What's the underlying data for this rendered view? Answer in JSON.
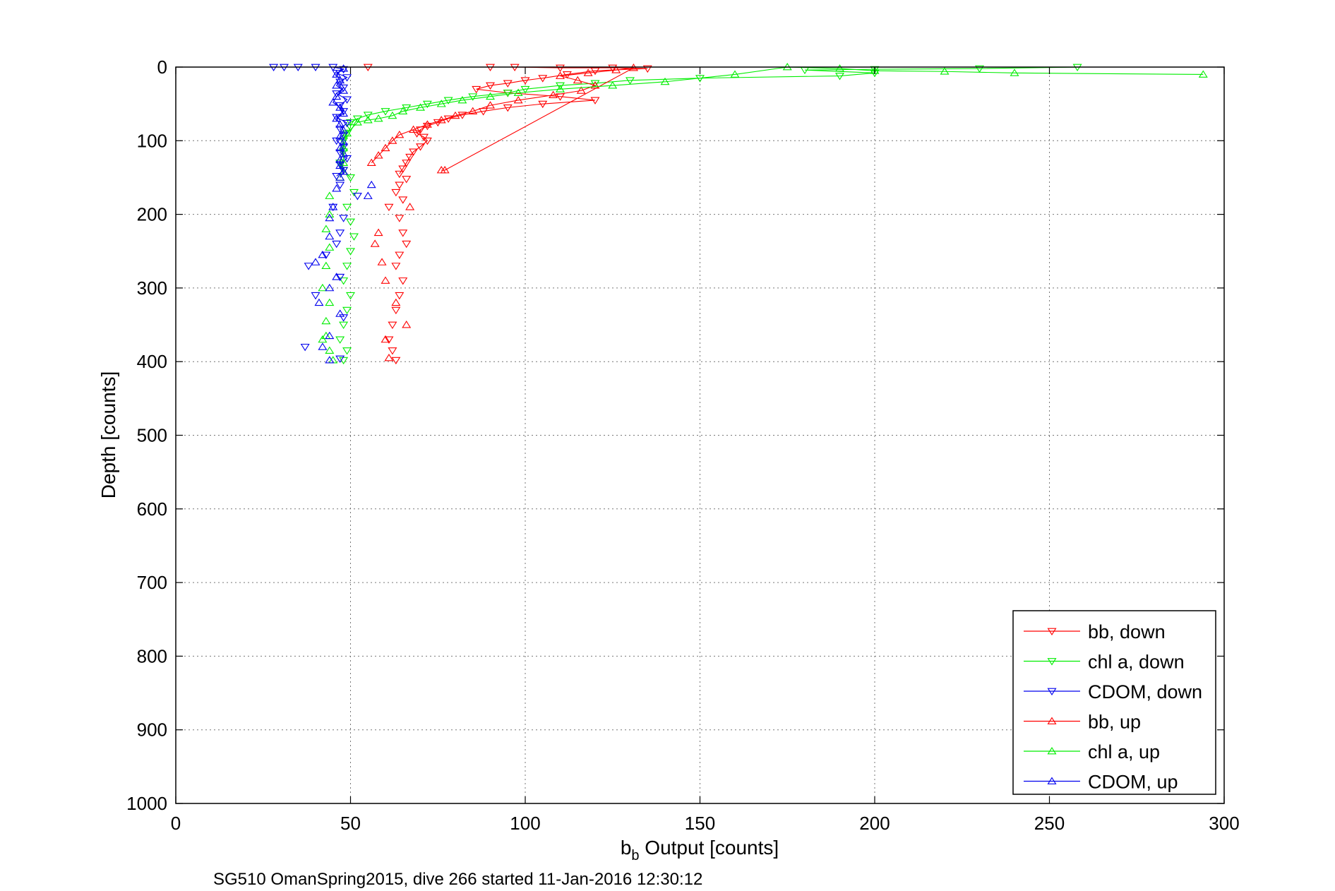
{
  "chart_data": {
    "type": "scatter",
    "xlabel": "b_b Output [counts]",
    "xlabel_main": "b",
    "xlabel_sub": "b",
    "xlabel_rest": " Output [counts]",
    "ylabel": "Depth [counts]",
    "footer": "SG510 OmanSpring2015, dive 266 started 11-Jan-2016 12:30:12",
    "xlim": [
      0,
      300
    ],
    "ylim": [
      0,
      1000
    ],
    "y_reversed": true,
    "grid": true,
    "x_ticks": [
      "0",
      "50",
      "100",
      "150",
      "200",
      "250",
      "300"
    ],
    "y_ticks": [
      "0",
      "100",
      "200",
      "300",
      "400",
      "500",
      "600",
      "700",
      "800",
      "900",
      "1000"
    ],
    "legend_position": "bottom-right",
    "series": [
      {
        "name": "bb, down",
        "color": "#ff0000",
        "marker": "triangle-down",
        "points": [
          [
            55,
            0
          ],
          [
            90,
            0
          ],
          [
            97,
            0
          ],
          [
            110,
            1
          ],
          [
            125,
            1
          ],
          [
            135,
            2
          ],
          [
            120,
            5
          ],
          [
            112,
            10
          ],
          [
            105,
            15
          ],
          [
            100,
            18
          ],
          [
            95,
            22
          ],
          [
            90,
            25
          ],
          [
            86,
            30
          ],
          [
            95,
            35
          ],
          [
            110,
            40
          ],
          [
            120,
            45
          ],
          [
            105,
            50
          ],
          [
            95,
            55
          ],
          [
            88,
            60
          ],
          [
            82,
            65
          ],
          [
            78,
            70
          ],
          [
            75,
            75
          ],
          [
            72,
            80
          ],
          [
            70,
            85
          ],
          [
            69,
            90
          ],
          [
            71,
            95
          ],
          [
            72,
            100
          ],
          [
            70,
            108
          ],
          [
            68,
            115
          ],
          [
            67,
            122
          ],
          [
            66,
            130
          ],
          [
            65,
            138
          ],
          [
            64,
            145
          ],
          [
            66,
            152
          ],
          [
            64,
            160
          ],
          [
            63,
            170
          ],
          [
            65,
            180
          ],
          [
            61,
            190
          ],
          [
            64,
            205
          ],
          [
            65,
            225
          ],
          [
            66,
            240
          ],
          [
            64,
            255
          ],
          [
            63,
            270
          ],
          [
            65,
            290
          ],
          [
            64,
            310
          ],
          [
            63,
            330
          ],
          [
            62,
            350
          ],
          [
            61,
            370
          ],
          [
            62,
            385
          ],
          [
            63,
            398
          ]
        ]
      },
      {
        "name": "chl a, down",
        "color": "#00ee00",
        "marker": "triangle-down",
        "points": [
          [
            258,
            0
          ],
          [
            230,
            2
          ],
          [
            200,
            3
          ],
          [
            180,
            4
          ],
          [
            200,
            8
          ],
          [
            190,
            12
          ],
          [
            150,
            15
          ],
          [
            130,
            18
          ],
          [
            120,
            22
          ],
          [
            110,
            25
          ],
          [
            100,
            30
          ],
          [
            95,
            35
          ],
          [
            85,
            40
          ],
          [
            78,
            45
          ],
          [
            72,
            50
          ],
          [
            66,
            55
          ],
          [
            60,
            60
          ],
          [
            55,
            65
          ],
          [
            52,
            70
          ],
          [
            50,
            75
          ],
          [
            50,
            82
          ],
          [
            49,
            90
          ],
          [
            48,
            100
          ],
          [
            48,
            115
          ],
          [
            47,
            130
          ],
          [
            48,
            140
          ],
          [
            50,
            150
          ],
          [
            51,
            170
          ],
          [
            49,
            190
          ],
          [
            50,
            210
          ],
          [
            51,
            230
          ],
          [
            50,
            250
          ],
          [
            49,
            270
          ],
          [
            48,
            290
          ],
          [
            50,
            310
          ],
          [
            49,
            330
          ],
          [
            48,
            350
          ],
          [
            47,
            370
          ],
          [
            49,
            385
          ],
          [
            48,
            398
          ]
        ]
      },
      {
        "name": "CDOM, down",
        "color": "#0000ee",
        "marker": "triangle-down",
        "points": [
          [
            28,
            0
          ],
          [
            31,
            0
          ],
          [
            35,
            0
          ],
          [
            40,
            0
          ],
          [
            45,
            0
          ],
          [
            48,
            3
          ],
          [
            46,
            8
          ],
          [
            49,
            14
          ],
          [
            47,
            20
          ],
          [
            48,
            28
          ],
          [
            46,
            36
          ],
          [
            49,
            44
          ],
          [
            47,
            52
          ],
          [
            48,
            60
          ],
          [
            46,
            68
          ],
          [
            49,
            76
          ],
          [
            47,
            84
          ],
          [
            48,
            92
          ],
          [
            46,
            100
          ],
          [
            48,
            108
          ],
          [
            47,
            116
          ],
          [
            49,
            124
          ],
          [
            47,
            132
          ],
          [
            48,
            140
          ],
          [
            46,
            148
          ],
          [
            47,
            160
          ],
          [
            52,
            175
          ],
          [
            45,
            190
          ],
          [
            48,
            205
          ],
          [
            47,
            225
          ],
          [
            46,
            240
          ],
          [
            43,
            255
          ],
          [
            38,
            270
          ],
          [
            47,
            285
          ],
          [
            40,
            310
          ],
          [
            48,
            340
          ],
          [
            37,
            380
          ],
          [
            47,
            396
          ]
        ]
      },
      {
        "name": "bb, up",
        "color": "#ff0000",
        "marker": "triangle-up",
        "points": [
          [
            56,
            130
          ],
          [
            58,
            120
          ],
          [
            60,
            110
          ],
          [
            62,
            100
          ],
          [
            64,
            92
          ],
          [
            68,
            85
          ],
          [
            72,
            78
          ],
          [
            76,
            72
          ],
          [
            80,
            66
          ],
          [
            85,
            60
          ],
          [
            90,
            52
          ],
          [
            98,
            45
          ],
          [
            108,
            38
          ],
          [
            116,
            32
          ],
          [
            120,
            25
          ],
          [
            115,
            18
          ],
          [
            110,
            12
          ],
          [
            118,
            8
          ],
          [
            126,
            4
          ],
          [
            131,
            1
          ],
          [
            77,
            140
          ],
          [
            76,
            140
          ],
          [
            67,
            190
          ],
          [
            58,
            225
          ],
          [
            57,
            240
          ],
          [
            59,
            265
          ],
          [
            60,
            290
          ],
          [
            63,
            320
          ],
          [
            66,
            350
          ],
          [
            60,
            370
          ],
          [
            61,
            395
          ]
        ]
      },
      {
        "name": "chl a, up",
        "color": "#00ee00",
        "marker": "triangle-up",
        "points": [
          [
            294,
            10
          ],
          [
            240,
            8
          ],
          [
            220,
            6
          ],
          [
            200,
            5
          ],
          [
            190,
            2
          ],
          [
            175,
            0
          ],
          [
            160,
            10
          ],
          [
            140,
            20
          ],
          [
            125,
            25
          ],
          [
            110,
            30
          ],
          [
            98,
            35
          ],
          [
            90,
            40
          ],
          [
            82,
            45
          ],
          [
            76,
            50
          ],
          [
            70,
            55
          ],
          [
            65,
            60
          ],
          [
            62,
            66
          ],
          [
            58,
            70
          ],
          [
            55,
            72
          ],
          [
            52,
            75
          ],
          [
            49,
            90
          ],
          [
            48,
            110
          ],
          [
            48,
            130
          ],
          [
            47,
            150
          ],
          [
            44,
            175
          ],
          [
            44,
            200
          ],
          [
            43,
            220
          ],
          [
            44,
            245
          ],
          [
            43,
            270
          ],
          [
            42,
            300
          ],
          [
            44,
            320
          ],
          [
            43,
            345
          ],
          [
            43,
            365
          ],
          [
            42,
            370
          ],
          [
            44,
            385
          ],
          [
            45,
            398
          ]
        ]
      },
      {
        "name": "CDOM, up",
        "color": "#0000ee",
        "marker": "triangle-up",
        "points": [
          [
            48,
            2
          ],
          [
            46,
            10
          ],
          [
            47,
            18
          ],
          [
            46,
            25
          ],
          [
            48,
            32
          ],
          [
            46,
            40
          ],
          [
            45,
            48
          ],
          [
            47,
            55
          ],
          [
            48,
            63
          ],
          [
            46,
            70
          ],
          [
            47,
            78
          ],
          [
            48,
            86
          ],
          [
            47,
            94
          ],
          [
            48,
            102
          ],
          [
            47,
            110
          ],
          [
            48,
            118
          ],
          [
            47,
            126
          ],
          [
            47,
            134
          ],
          [
            48,
            142
          ],
          [
            47,
            150
          ],
          [
            56,
            160
          ],
          [
            46,
            165
          ],
          [
            55,
            175
          ],
          [
            45,
            190
          ],
          [
            44,
            205
          ],
          [
            44,
            230
          ],
          [
            42,
            255
          ],
          [
            40,
            265
          ],
          [
            46,
            285
          ],
          [
            44,
            300
          ],
          [
            41,
            320
          ],
          [
            47,
            335
          ],
          [
            44,
            365
          ],
          [
            42,
            380
          ],
          [
            44,
            398
          ]
        ]
      }
    ]
  }
}
